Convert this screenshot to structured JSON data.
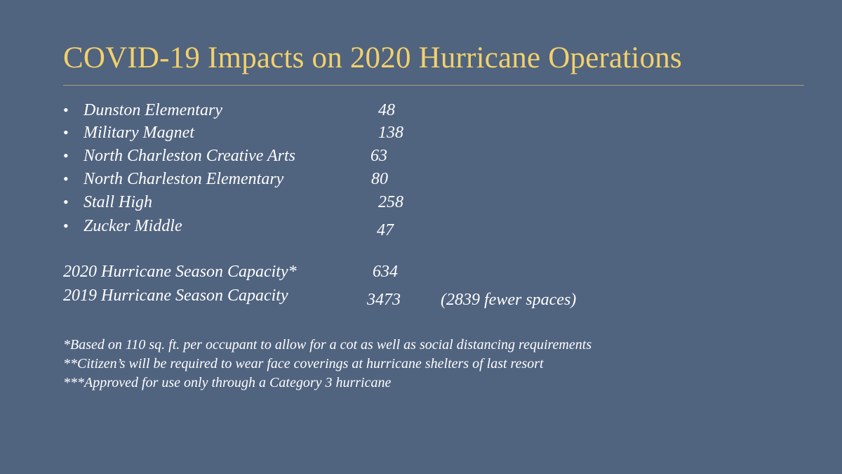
{
  "slide": {
    "title": "COVID-19 Impacts on 2020 Hurricane Operations",
    "bullet_glyph": "•",
    "shelters": [
      {
        "name": " Dunston Elementary",
        "count": "48"
      },
      {
        "name": "Military Magnet",
        "count": "138"
      },
      {
        "name": "North Charleston Creative Arts",
        "count": "63"
      },
      {
        "name": "North Charleston Elementary",
        "count": "80"
      },
      {
        "name": "Stall High",
        "count": "258"
      },
      {
        "name": "Zucker Middle",
        "count": "47"
      }
    ],
    "capacity_2020": {
      "label": "2020 Hurricane Season Capacity*",
      "value": "634"
    },
    "capacity_2019": {
      "label": "2019 Hurricane Season Capacity",
      "value": "3473",
      "note": "(2839 fewer spaces)"
    },
    "footnotes": [
      "*Based on 110 sq. ft. per occupant to allow  for a cot as well as social distancing requirements",
      "**Citizen’s will be required to wear face coverings at hurricane shelters of last resort",
      "***Approved for use only through a Category 3 hurricane"
    ]
  },
  "colors": {
    "background": "#50637f",
    "title": "#f2d16b",
    "text": "#ffffff"
  }
}
